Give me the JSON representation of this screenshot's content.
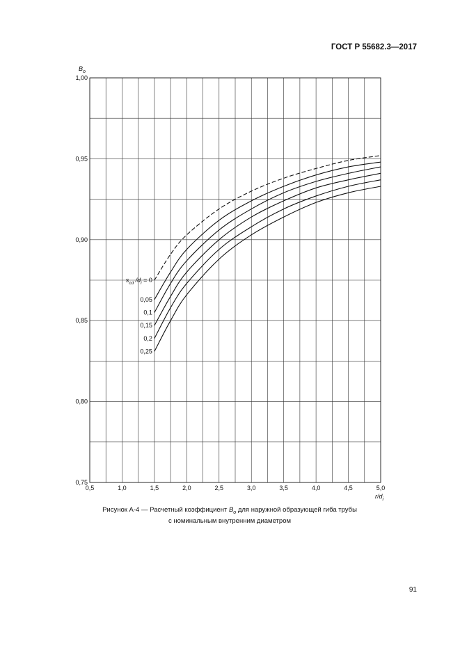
{
  "document": {
    "header": "ГОСТ Р 55682.3—2017",
    "page_number": "91"
  },
  "caption": {
    "before_symbol": "Рисунок А-4 — Расчетный коэффициент ",
    "symbol": "B",
    "symbol_sub": "o",
    "after_symbol": " для наружной образующей гиба трубы",
    "line2": "с номинальным внутренним диаметром"
  },
  "chart_data": {
    "type": "line",
    "ylabel": "B",
    "ylabel_sub": "o",
    "xlabel": "r/d",
    "xlabel_sub": "i",
    "xlim": [
      0.5,
      5.0
    ],
    "ylim": [
      0.75,
      1.0
    ],
    "x_ticks": [
      0.5,
      1.0,
      1.5,
      2.0,
      2.5,
      3.0,
      3.5,
      4.0,
      4.5,
      5.0
    ],
    "x_tick_labels": [
      "0,5",
      "1,0",
      "1,5",
      "2,0",
      "2,5",
      "3,0",
      "3,5",
      "4,0",
      "4,5",
      "5,0"
    ],
    "y_ticks": [
      0.75,
      0.8,
      0.85,
      0.9,
      0.95,
      1.0
    ],
    "y_tick_labels": [
      "0,75",
      "0,80",
      "0,85",
      "0,90",
      "0,95",
      "1,00"
    ],
    "grid": true,
    "series_label_prefix": {
      "s": "s",
      "s_sub": "cd",
      "slash": " /",
      "d": "d",
      "d_sub": "i",
      "eq": " = "
    },
    "x": [
      1.5,
      1.75,
      2.0,
      2.5,
      3.0,
      3.5,
      4.0,
      4.5,
      5.0
    ],
    "series": [
      {
        "name": "0",
        "dashed": true,
        "values": [
          0.875,
          0.891,
          0.903,
          0.919,
          0.93,
          0.938,
          0.944,
          0.949,
          0.952
        ]
      },
      {
        "name": "0,05",
        "dashed": false,
        "values": [
          0.863,
          0.88,
          0.894,
          0.912,
          0.924,
          0.933,
          0.94,
          0.945,
          0.948
        ]
      },
      {
        "name": "0,1",
        "dashed": false,
        "values": [
          0.855,
          0.873,
          0.887,
          0.906,
          0.919,
          0.929,
          0.936,
          0.941,
          0.945
        ]
      },
      {
        "name": "0,15",
        "dashed": false,
        "values": [
          0.847,
          0.865,
          0.88,
          0.9,
          0.914,
          0.924,
          0.932,
          0.937,
          0.941
        ]
      },
      {
        "name": "0,2",
        "dashed": false,
        "values": [
          0.839,
          0.858,
          0.873,
          0.894,
          0.908,
          0.919,
          0.927,
          0.933,
          0.937
        ]
      },
      {
        "name": "0,25",
        "dashed": false,
        "values": [
          0.831,
          0.85,
          0.866,
          0.888,
          0.903,
          0.914,
          0.923,
          0.929,
          0.933
        ]
      }
    ]
  }
}
